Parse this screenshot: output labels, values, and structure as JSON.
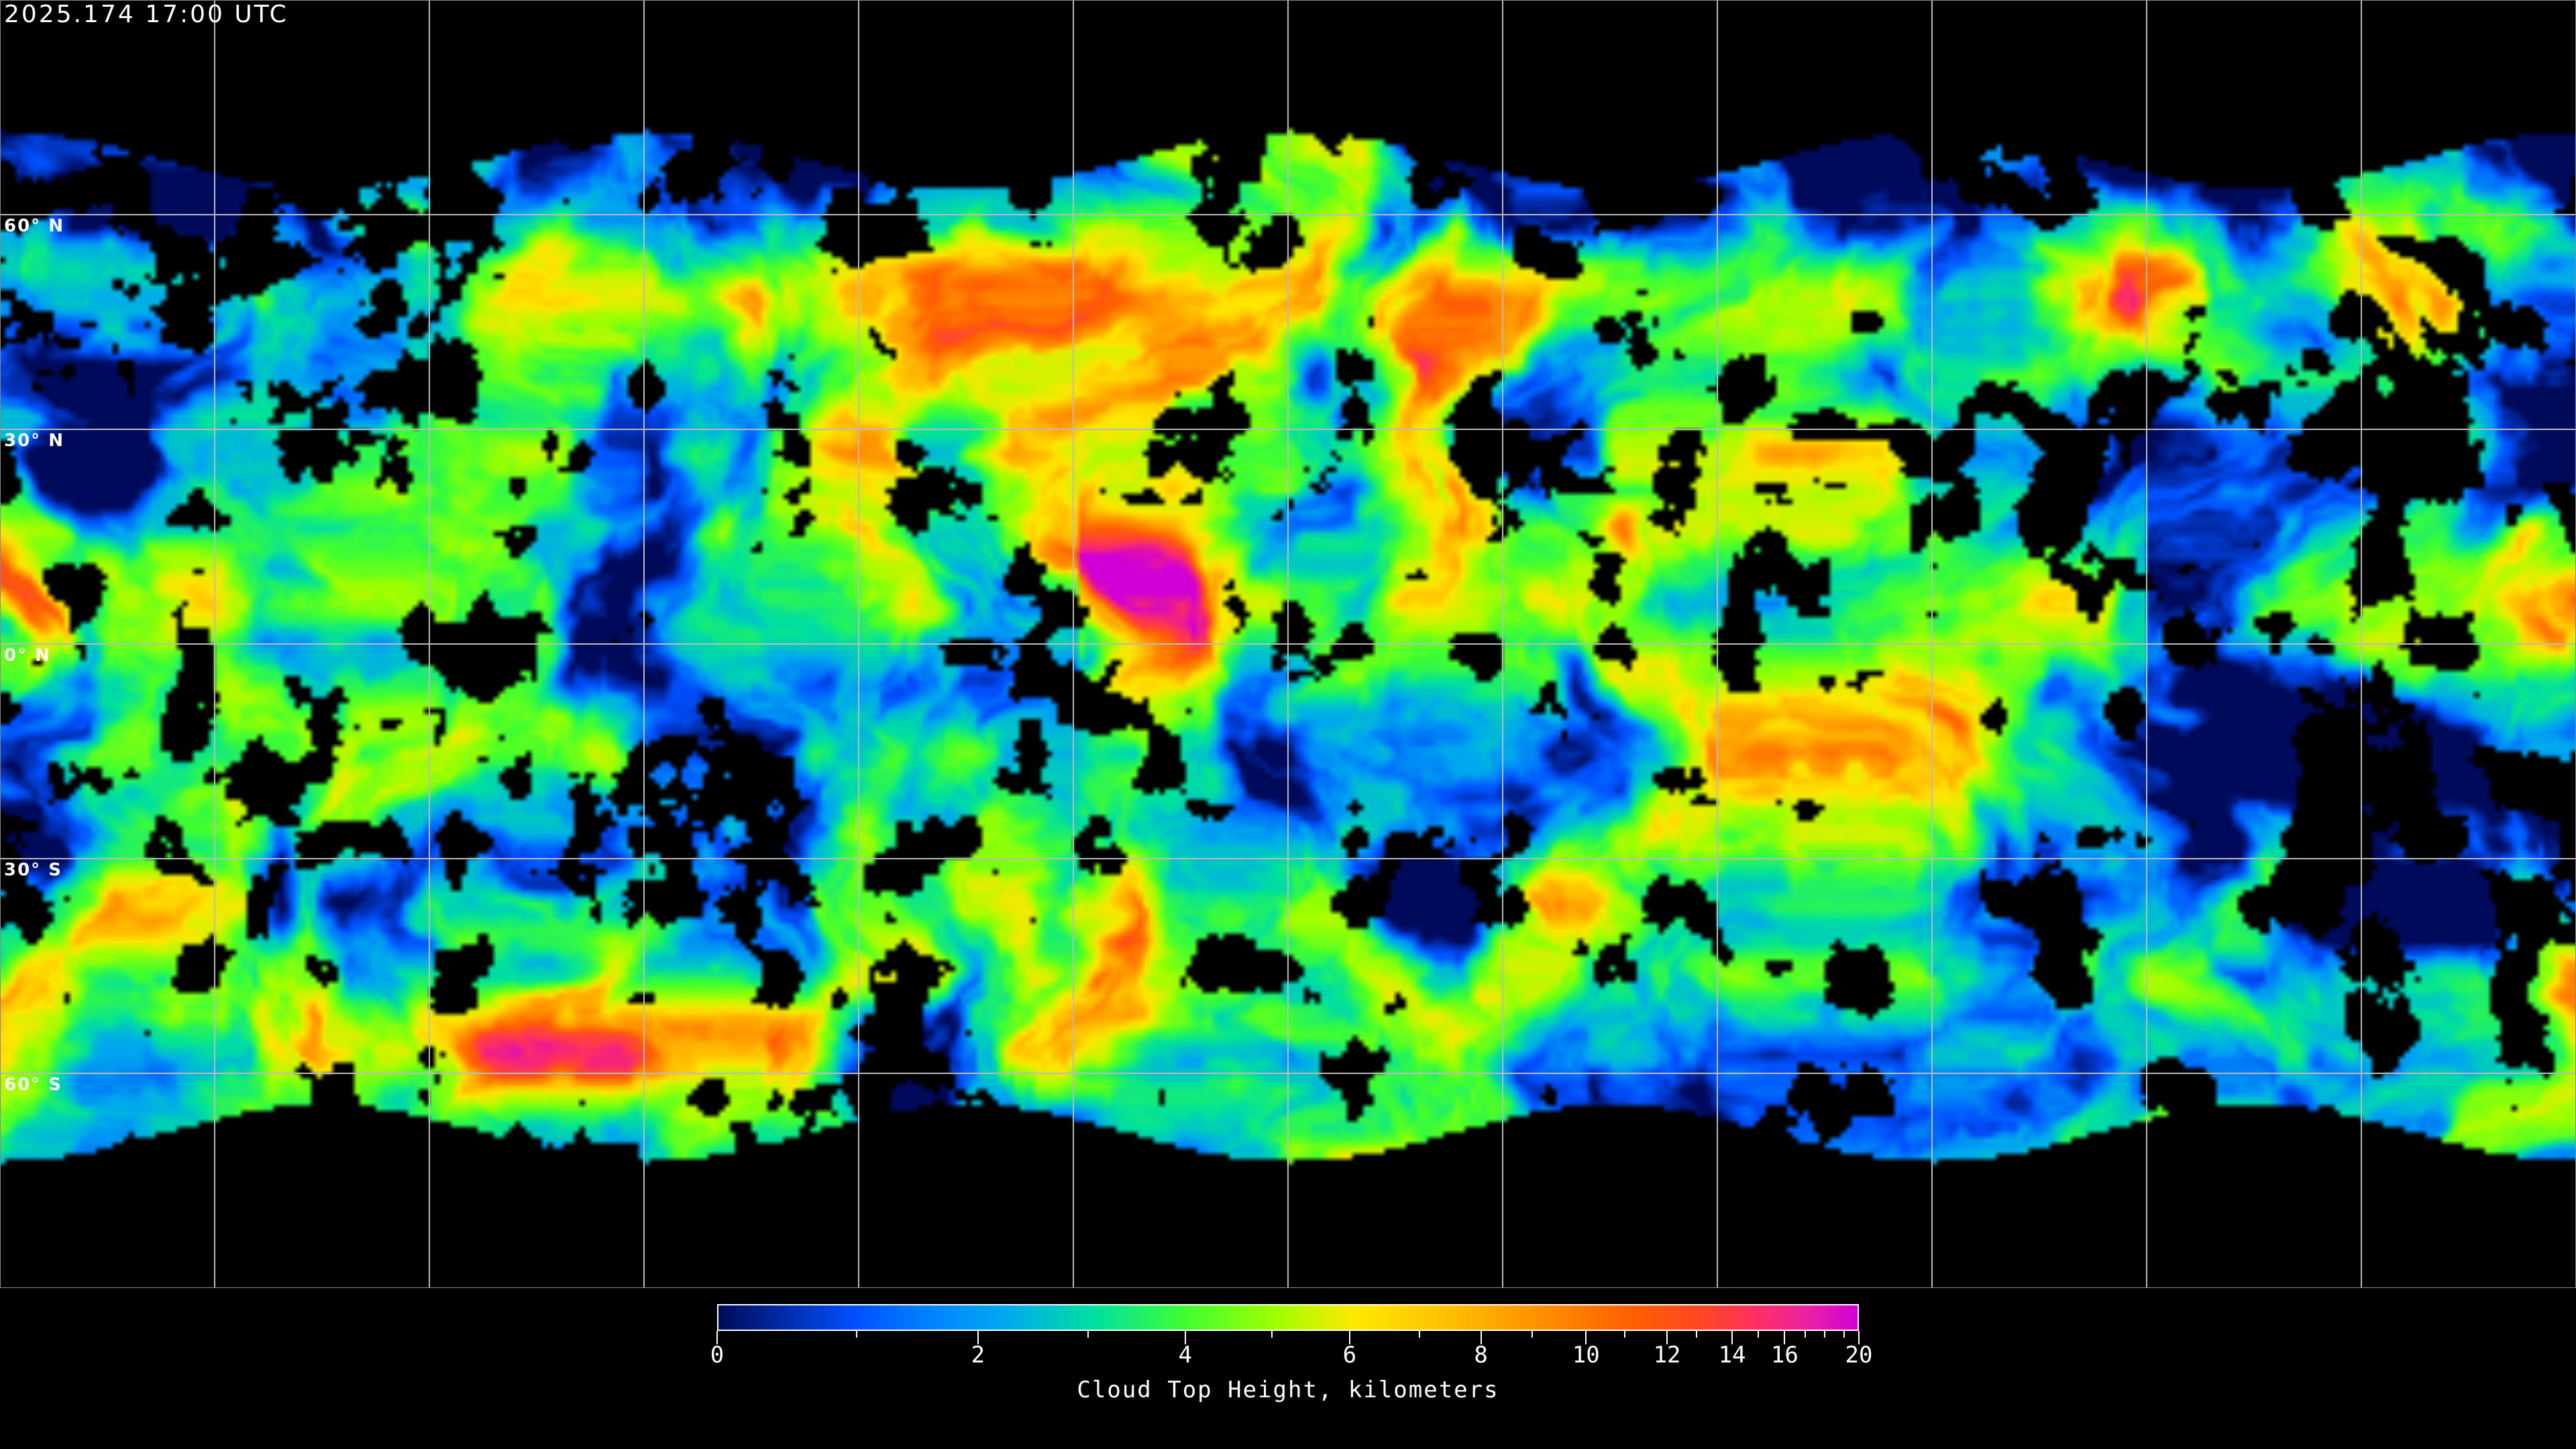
{
  "header": {
    "timestamp": "2025.174  17:00 UTC"
  },
  "map": {
    "projection": "equirectangular",
    "grid_spacing_degrees": 30,
    "lat_labels": [
      "60° N",
      "30° N",
      "0° N",
      "30° S",
      "60° S"
    ]
  },
  "colorbar": {
    "title": "Cloud Top Height, kilometers",
    "range": [
      0,
      20
    ],
    "tick_labels": [
      "0",
      "2",
      "4",
      "6",
      "8",
      "10",
      "12",
      "14",
      "16",
      "20"
    ],
    "minor_ticks": [
      1,
      3,
      5,
      7,
      9,
      11,
      13,
      15,
      17,
      18,
      19
    ],
    "colors": [
      "#000a5a",
      "#0050ff",
      "#00a8f0",
      "#00e0a0",
      "#40ff30",
      "#a0ff00",
      "#ffe800",
      "#ffa000",
      "#ff6000",
      "#ff3060",
      "#d000d8"
    ]
  }
}
